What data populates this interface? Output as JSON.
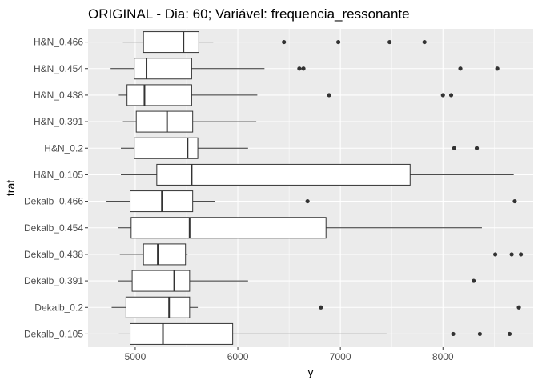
{
  "chart_data": {
    "type": "boxplot",
    "title": "ORIGINAL - Dia: 60; Variável: frequencia_ressonante",
    "xlabel": "y",
    "ylabel": "trat",
    "xlim": [
      4540,
      8880
    ],
    "xticks": [
      5000,
      6000,
      7000,
      8000
    ],
    "xtick_labels": [
      "5000",
      "6000",
      "7000",
      "8000"
    ],
    "grid": true,
    "colors": {
      "panel": "#ebebeb",
      "grid_major": "#ffffff",
      "box_fill": "#ffffff",
      "box_line": "#333333",
      "outlier": "#333333"
    },
    "categories": [
      "H&N_0.466",
      "H&N_0.454",
      "H&N_0.438",
      "H&N_0.391",
      "H&N_0.2",
      "H&N_0.105",
      "Dekalb_0.466",
      "Dekalb_0.454",
      "Dekalb_0.438",
      "Dekalb_0.391",
      "Dekalb_0.2",
      "Dekalb_0.105"
    ],
    "boxes": [
      {
        "category": "H&N_0.466",
        "whisker_low": 4880,
        "q1": 5080,
        "median": 5470,
        "q3": 5620,
        "whisker_high": 5760,
        "outliers": [
          6450,
          6980,
          7480,
          7820
        ]
      },
      {
        "category": "H&N_0.454",
        "whisker_low": 4760,
        "q1": 4990,
        "median": 5110,
        "q3": 5550,
        "whisker_high": 6260,
        "outliers": [
          6600,
          6640,
          8170,
          8530
        ]
      },
      {
        "category": "H&N_0.438",
        "whisker_low": 4840,
        "q1": 4920,
        "median": 5090,
        "q3": 5550,
        "whisker_high": 6190,
        "outliers": [
          6890,
          8000,
          8080
        ]
      },
      {
        "category": "H&N_0.391",
        "whisker_low": 4880,
        "q1": 5010,
        "median": 5310,
        "q3": 5560,
        "whisker_high": 6180,
        "outliers": []
      },
      {
        "category": "H&N_0.2",
        "whisker_low": 4860,
        "q1": 4990,
        "median": 5510,
        "q3": 5610,
        "whisker_high": 6100,
        "outliers": [
          8110,
          8330
        ]
      },
      {
        "category": "H&N_0.105",
        "whisker_low": 4860,
        "q1": 5210,
        "median": 5550,
        "q3": 7680,
        "whisker_high": 8690,
        "outliers": []
      },
      {
        "category": "Dekalb_0.466",
        "whisker_low": 4720,
        "q1": 4950,
        "median": 5260,
        "q3": 5560,
        "whisker_high": 5780,
        "outliers": [
          6680,
          8700
        ]
      },
      {
        "category": "Dekalb_0.454",
        "whisker_low": 4830,
        "q1": 4960,
        "median": 5530,
        "q3": 6860,
        "whisker_high": 8380,
        "outliers": []
      },
      {
        "category": "Dekalb_0.438",
        "whisker_low": 4850,
        "q1": 5080,
        "median": 5220,
        "q3": 5490,
        "whisker_high": 5510,
        "outliers": [
          8510,
          8670,
          8760
        ]
      },
      {
        "category": "Dekalb_0.391",
        "whisker_low": 4830,
        "q1": 4970,
        "median": 5380,
        "q3": 5530,
        "whisker_high": 6100,
        "outliers": [
          8300
        ]
      },
      {
        "category": "Dekalb_0.2",
        "whisker_low": 4770,
        "q1": 4910,
        "median": 5330,
        "q3": 5530,
        "whisker_high": 5610,
        "outliers": [
          6810,
          8740
        ]
      },
      {
        "category": "Dekalb_0.105",
        "whisker_low": 4840,
        "q1": 4950,
        "median": 5270,
        "q3": 5950,
        "whisker_high": 7450,
        "outliers": [
          8100,
          8360,
          8650
        ]
      }
    ]
  }
}
